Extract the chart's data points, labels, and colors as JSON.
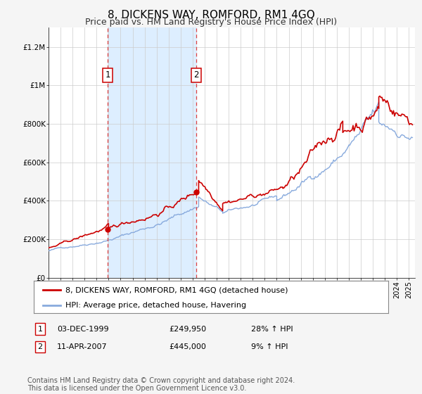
{
  "title": "8, DICKENS WAY, ROMFORD, RM1 4GQ",
  "subtitle": "Price paid vs. HM Land Registry's House Price Index (HPI)",
  "ylabel_ticks": [
    "£0",
    "£200K",
    "£400K",
    "£600K",
    "£800K",
    "£1M",
    "£1.2M"
  ],
  "ylim": [
    0,
    1300000
  ],
  "yticks": [
    0,
    200000,
    400000,
    600000,
    800000,
    1000000,
    1200000
  ],
  "xlim_start": 1995.0,
  "xlim_end": 2025.5,
  "sale1_x": 1999.92,
  "sale1_y": 249950,
  "sale1_label": "1",
  "sale1_date": "03-DEC-1999",
  "sale1_price": "£249,950",
  "sale1_hpi": "28% ↑ HPI",
  "sale2_x": 2007.28,
  "sale2_y": 445000,
  "sale2_label": "2",
  "sale2_date": "11-APR-2007",
  "sale2_price": "£445,000",
  "sale2_hpi": "9% ↑ HPI",
  "background_color": "#f5f5f5",
  "plot_bg_color": "#ffffff",
  "shaded_region_color": "#ddeeff",
  "grid_color": "#cccccc",
  "red_line_color": "#cc0000",
  "blue_line_color": "#88aadd",
  "dashed_line_color": "#dd4444",
  "legend_label_red": "8, DICKENS WAY, ROMFORD, RM1 4GQ (detached house)",
  "legend_label_blue": "HPI: Average price, detached house, Havering",
  "footer_text": "Contains HM Land Registry data © Crown copyright and database right 2024.\nThis data is licensed under the Open Government Licence v3.0.",
  "title_fontsize": 11,
  "subtitle_fontsize": 9,
  "axis_fontsize": 7.5,
  "legend_fontsize": 8,
  "footer_fontsize": 7
}
